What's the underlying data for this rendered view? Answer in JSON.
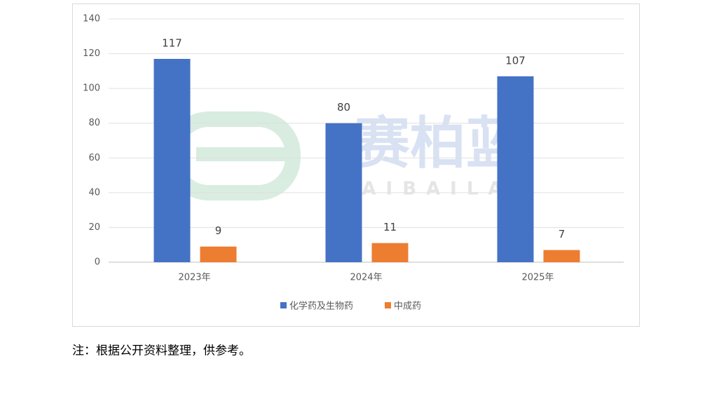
{
  "chart_data": {
    "type": "bar",
    "categories": [
      "2023年",
      "2024年",
      "2025年"
    ],
    "series": [
      {
        "name": "化学药及生物药",
        "color": "#4472c4",
        "values": [
          117,
          80,
          107
        ]
      },
      {
        "name": "中成药",
        "color": "#ed7d31",
        "values": [
          9,
          11,
          7
        ]
      }
    ],
    "ylim": [
      0,
      140
    ],
    "yticks": [
      0,
      20,
      40,
      60,
      80,
      100,
      120,
      140
    ],
    "grid": true,
    "legend": "bottom",
    "watermark": {
      "text": "赛柏蓝",
      "subtext": "SAIBAILAN"
    }
  },
  "note": "注：根据公开资料整理，供参考。"
}
